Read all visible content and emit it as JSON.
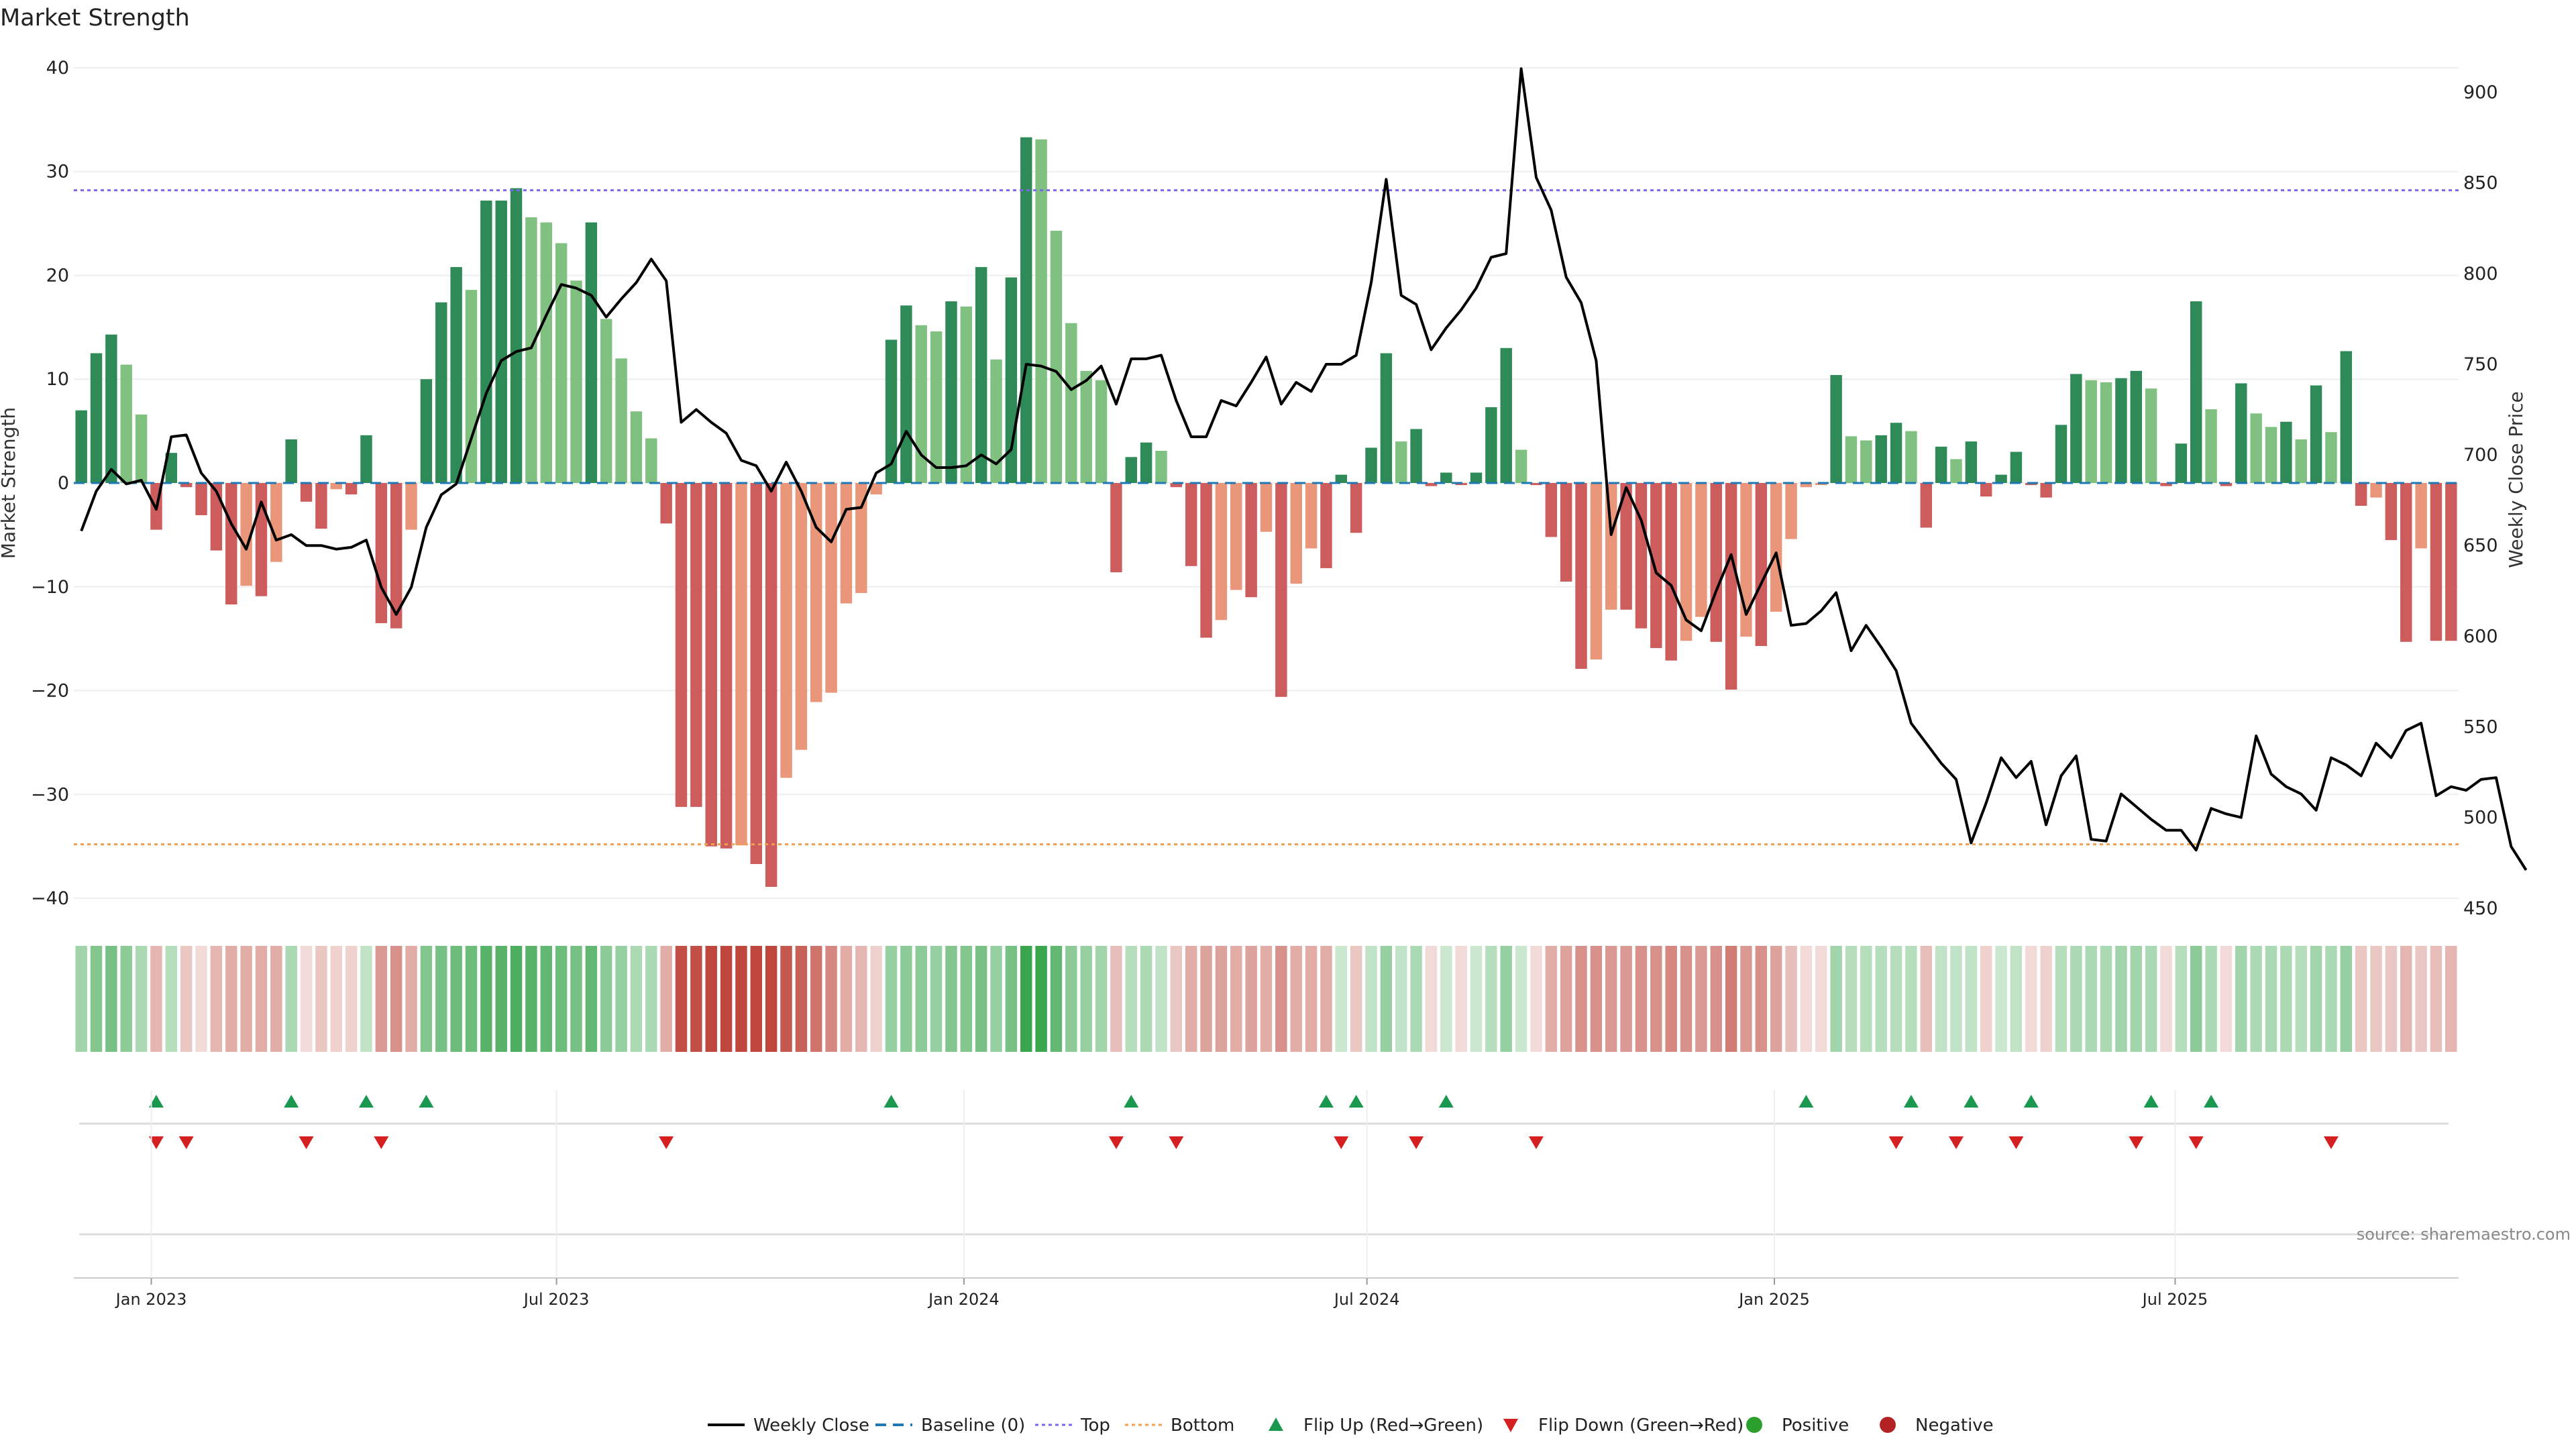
{
  "colors": {
    "pos_dark": "#2e8b57",
    "pos_light": "#80c080",
    "neg_dark": "#cd5c5c",
    "neg_light": "#e9967a",
    "close_line": "#000000",
    "top_line": "#7b68ee",
    "bottom_line": "#f0a050",
    "baseline": "#1f77b4",
    "flip_up": "#1a9850",
    "flip_down": "#d42020",
    "positive_dot": "#2ca02c",
    "negative_dot": "#b22222",
    "grid": "#eeeeee",
    "source": "#888888"
  },
  "chart_data": {
    "type": "bar",
    "title": "Market Strength",
    "ylabel": "Market Strength",
    "y2label": "Weekly Close Price",
    "ylim": [
      -42,
      42
    ],
    "y2lim": [
      444,
      925
    ],
    "y_ticks": [
      -40,
      -30,
      -20,
      -10,
      0,
      10,
      20,
      30,
      40
    ],
    "y2_ticks": [
      450,
      500,
      550,
      600,
      650,
      700,
      750,
      800,
      850,
      900
    ],
    "top_level": 28.2,
    "bottom_level": -34.8,
    "x_start": "2022-11-25",
    "x_end": "2025-11-06",
    "x_ticks": [
      {
        "date": "2022-12-30",
        "label": "Jan 2023"
      },
      {
        "date": "2023-07-01",
        "label": "Jul 2023"
      },
      {
        "date": "2024-01-01",
        "label": "Jan 2024"
      },
      {
        "date": "2024-07-01",
        "label": "Jul 2024"
      },
      {
        "date": "2025-01-01",
        "label": "Jan 2025"
      },
      {
        "date": "2025-07-01",
        "label": "Jul 2025"
      }
    ],
    "strength": [
      7,
      12.5,
      14.3,
      11.4,
      6.6,
      -4.5,
      2.9,
      -0.4,
      -3.1,
      -6.5,
      -11.7,
      -9.9,
      -10.9,
      -7.6,
      4.2,
      -1.8,
      -4.4,
      -0.6,
      -1.1,
      4.6,
      -13.5,
      -14,
      -4.5,
      10,
      17.4,
      20.8,
      18.6,
      27.2,
      27.2,
      28.4,
      25.6,
      25.1,
      23.1,
      19.5,
      25.1,
      15.8,
      12,
      6.9,
      4.3,
      -3.9,
      -31.2,
      -31.2,
      -35,
      -35.2,
      -34.9,
      -36.7,
      -38.9,
      -28.4,
      -25.7,
      -21.1,
      -20.2,
      -11.6,
      -10.6,
      -1.1,
      13.8,
      17.1,
      15.2,
      14.6,
      17.5,
      17,
      20.8,
      11.9,
      19.8,
      33.3,
      33.1,
      24.3,
      15.4,
      10.8,
      9.9,
      -8.6,
      2.5,
      3.9,
      3.1,
      -0.4,
      -8,
      -14.9,
      -13.2,
      -10.3,
      -11,
      -4.7,
      -20.6,
      -9.7,
      -6.3,
      -8.2,
      0.8,
      -4.8,
      3.4,
      12.5,
      4,
      5.2,
      -0.3,
      1,
      -0.2,
      1,
      7.3,
      13,
      3.2,
      -0.2,
      -5.2,
      -9.5,
      -17.9,
      -17,
      -12.2,
      -12.2,
      -14,
      -15.9,
      -17.1,
      -15.2,
      -12.9,
      -15.3,
      -19.9,
      -14.8,
      -15.7,
      -12.4,
      -5.4,
      -0.4,
      -0.2,
      10.4,
      4.5,
      4.1,
      4.6,
      5.8,
      5,
      -4.3,
      3.5,
      2.3,
      4,
      -1.3,
      0.8,
      3,
      -0.2,
      -1.4,
      5.6,
      10.5,
      9.9,
      9.7,
      10.1,
      10.8,
      9.1,
      -0.3,
      3.8,
      17.5,
      7.1,
      -0.3,
      9.6,
      6.7,
      5.4,
      5.9,
      4.2,
      9.4,
      4.9,
      12.7,
      -2.2,
      -1.4,
      -5.5,
      -15.3,
      -6.3,
      -15.2,
      -15.2
    ],
    "weekly_close": [
      658,
      680,
      692,
      684,
      686,
      670,
      710,
      711,
      690,
      680,
      662,
      648,
      674,
      653,
      656,
      650,
      650,
      648,
      649,
      653,
      627,
      612,
      627,
      660,
      678,
      684,
      709,
      734,
      752,
      757,
      759,
      777,
      794,
      792,
      788,
      776,
      786,
      795,
      808,
      796,
      718,
      725,
      718,
      712,
      697,
      694,
      680,
      696,
      680,
      660,
      652,
      670,
      671,
      690,
      695,
      713,
      700,
      693,
      693,
      694,
      700,
      695,
      703,
      750,
      749,
      746,
      736,
      741,
      749,
      728,
      753,
      753,
      755,
      730,
      710,
      710,
      730,
      727,
      740,
      754,
      728,
      740,
      735,
      750,
      750,
      755,
      795,
      852,
      788,
      783,
      758,
      770,
      780,
      792,
      809,
      811,
      913,
      853,
      835,
      798,
      784,
      752,
      656,
      682,
      664,
      635,
      628,
      609,
      603,
      625,
      645,
      612,
      629,
      646,
      606,
      607,
      614,
      624,
      592,
      606,
      594,
      581,
      552,
      541,
      530,
      521,
      486,
      508,
      533,
      522,
      531,
      496,
      523,
      534,
      488,
      487,
      513,
      506,
      499,
      493,
      493,
      482,
      505,
      502,
      500,
      545,
      524,
      517,
      513,
      504,
      533,
      529,
      523,
      541,
      533,
      548,
      552,
      512,
      517,
      515,
      521,
      522,
      484,
      471
    ],
    "intensity": [
      0.45,
      0.6,
      0.65,
      0.55,
      0.4,
      0.4,
      0.35,
      0.3,
      0.2,
      0.4,
      0.45,
      0.45,
      0.45,
      0.45,
      0.4,
      0.2,
      0.3,
      0.25,
      0.25,
      0.3,
      0.55,
      0.6,
      0.45,
      0.6,
      0.65,
      0.7,
      0.7,
      0.8,
      0.8,
      0.85,
      0.8,
      0.75,
      0.7,
      0.65,
      0.75,
      0.55,
      0.5,
      0.4,
      0.4,
      0.45,
      0.95,
      0.95,
      1,
      1,
      1,
      1,
      1,
      0.9,
      0.85,
      0.75,
      0.65,
      0.45,
      0.4,
      0.25,
      0.5,
      0.55,
      0.55,
      0.5,
      0.6,
      0.6,
      0.65,
      0.5,
      0.65,
      0.95,
      0.95,
      0.75,
      0.55,
      0.5,
      0.45,
      0.35,
      0.35,
      0.4,
      0.3,
      0.3,
      0.45,
      0.5,
      0.5,
      0.45,
      0.5,
      0.45,
      0.6,
      0.45,
      0.45,
      0.45,
      0.25,
      0.3,
      0.3,
      0.5,
      0.3,
      0.4,
      0.2,
      0.25,
      0.2,
      0.25,
      0.35,
      0.5,
      0.25,
      0.2,
      0.45,
      0.5,
      0.6,
      0.6,
      0.55,
      0.55,
      0.6,
      0.6,
      0.65,
      0.6,
      0.55,
      0.6,
      0.7,
      0.55,
      0.6,
      0.5,
      0.35,
      0.2,
      0.2,
      0.45,
      0.35,
      0.35,
      0.35,
      0.35,
      0.35,
      0.35,
      0.3,
      0.3,
      0.3,
      0.25,
      0.25,
      0.3,
      0.2,
      0.25,
      0.35,
      0.4,
      0.4,
      0.4,
      0.45,
      0.45,
      0.4,
      0.2,
      0.35,
      0.55,
      0.4,
      0.2,
      0.45,
      0.4,
      0.4,
      0.4,
      0.35,
      0.45,
      0.4,
      0.5,
      0.3,
      0.3,
      0.3,
      0.4,
      0.3,
      0.35,
      0.4
    ],
    "flip_up": [
      5,
      14,
      19,
      23,
      54,
      70,
      83,
      85,
      91,
      115,
      122,
      126,
      130,
      138,
      142
    ],
    "flip_down": [
      5,
      7,
      15,
      20,
      39,
      69,
      73,
      84,
      89,
      97,
      121,
      125,
      129,
      137,
      141,
      150
    ]
  },
  "legend": [
    {
      "key": "weekly_close",
      "label": "Weekly Close",
      "marker": "line"
    },
    {
      "key": "baseline",
      "label": "Baseline (0)",
      "marker": "dash"
    },
    {
      "key": "top",
      "label": "Top",
      "marker": "dot-line"
    },
    {
      "key": "bottom",
      "label": "Bottom",
      "marker": "dot-line"
    },
    {
      "key": "flip_up",
      "label": "Flip Up (Red→Green)",
      "marker": "triangle-up"
    },
    {
      "key": "flip_down",
      "label": "Flip Down (Green→Red)",
      "marker": "triangle-down"
    },
    {
      "key": "positive",
      "label": "Positive",
      "marker": "dot"
    },
    {
      "key": "negative",
      "label": "Negative",
      "marker": "dot"
    }
  ],
  "source": "source: sharemaestro.com"
}
